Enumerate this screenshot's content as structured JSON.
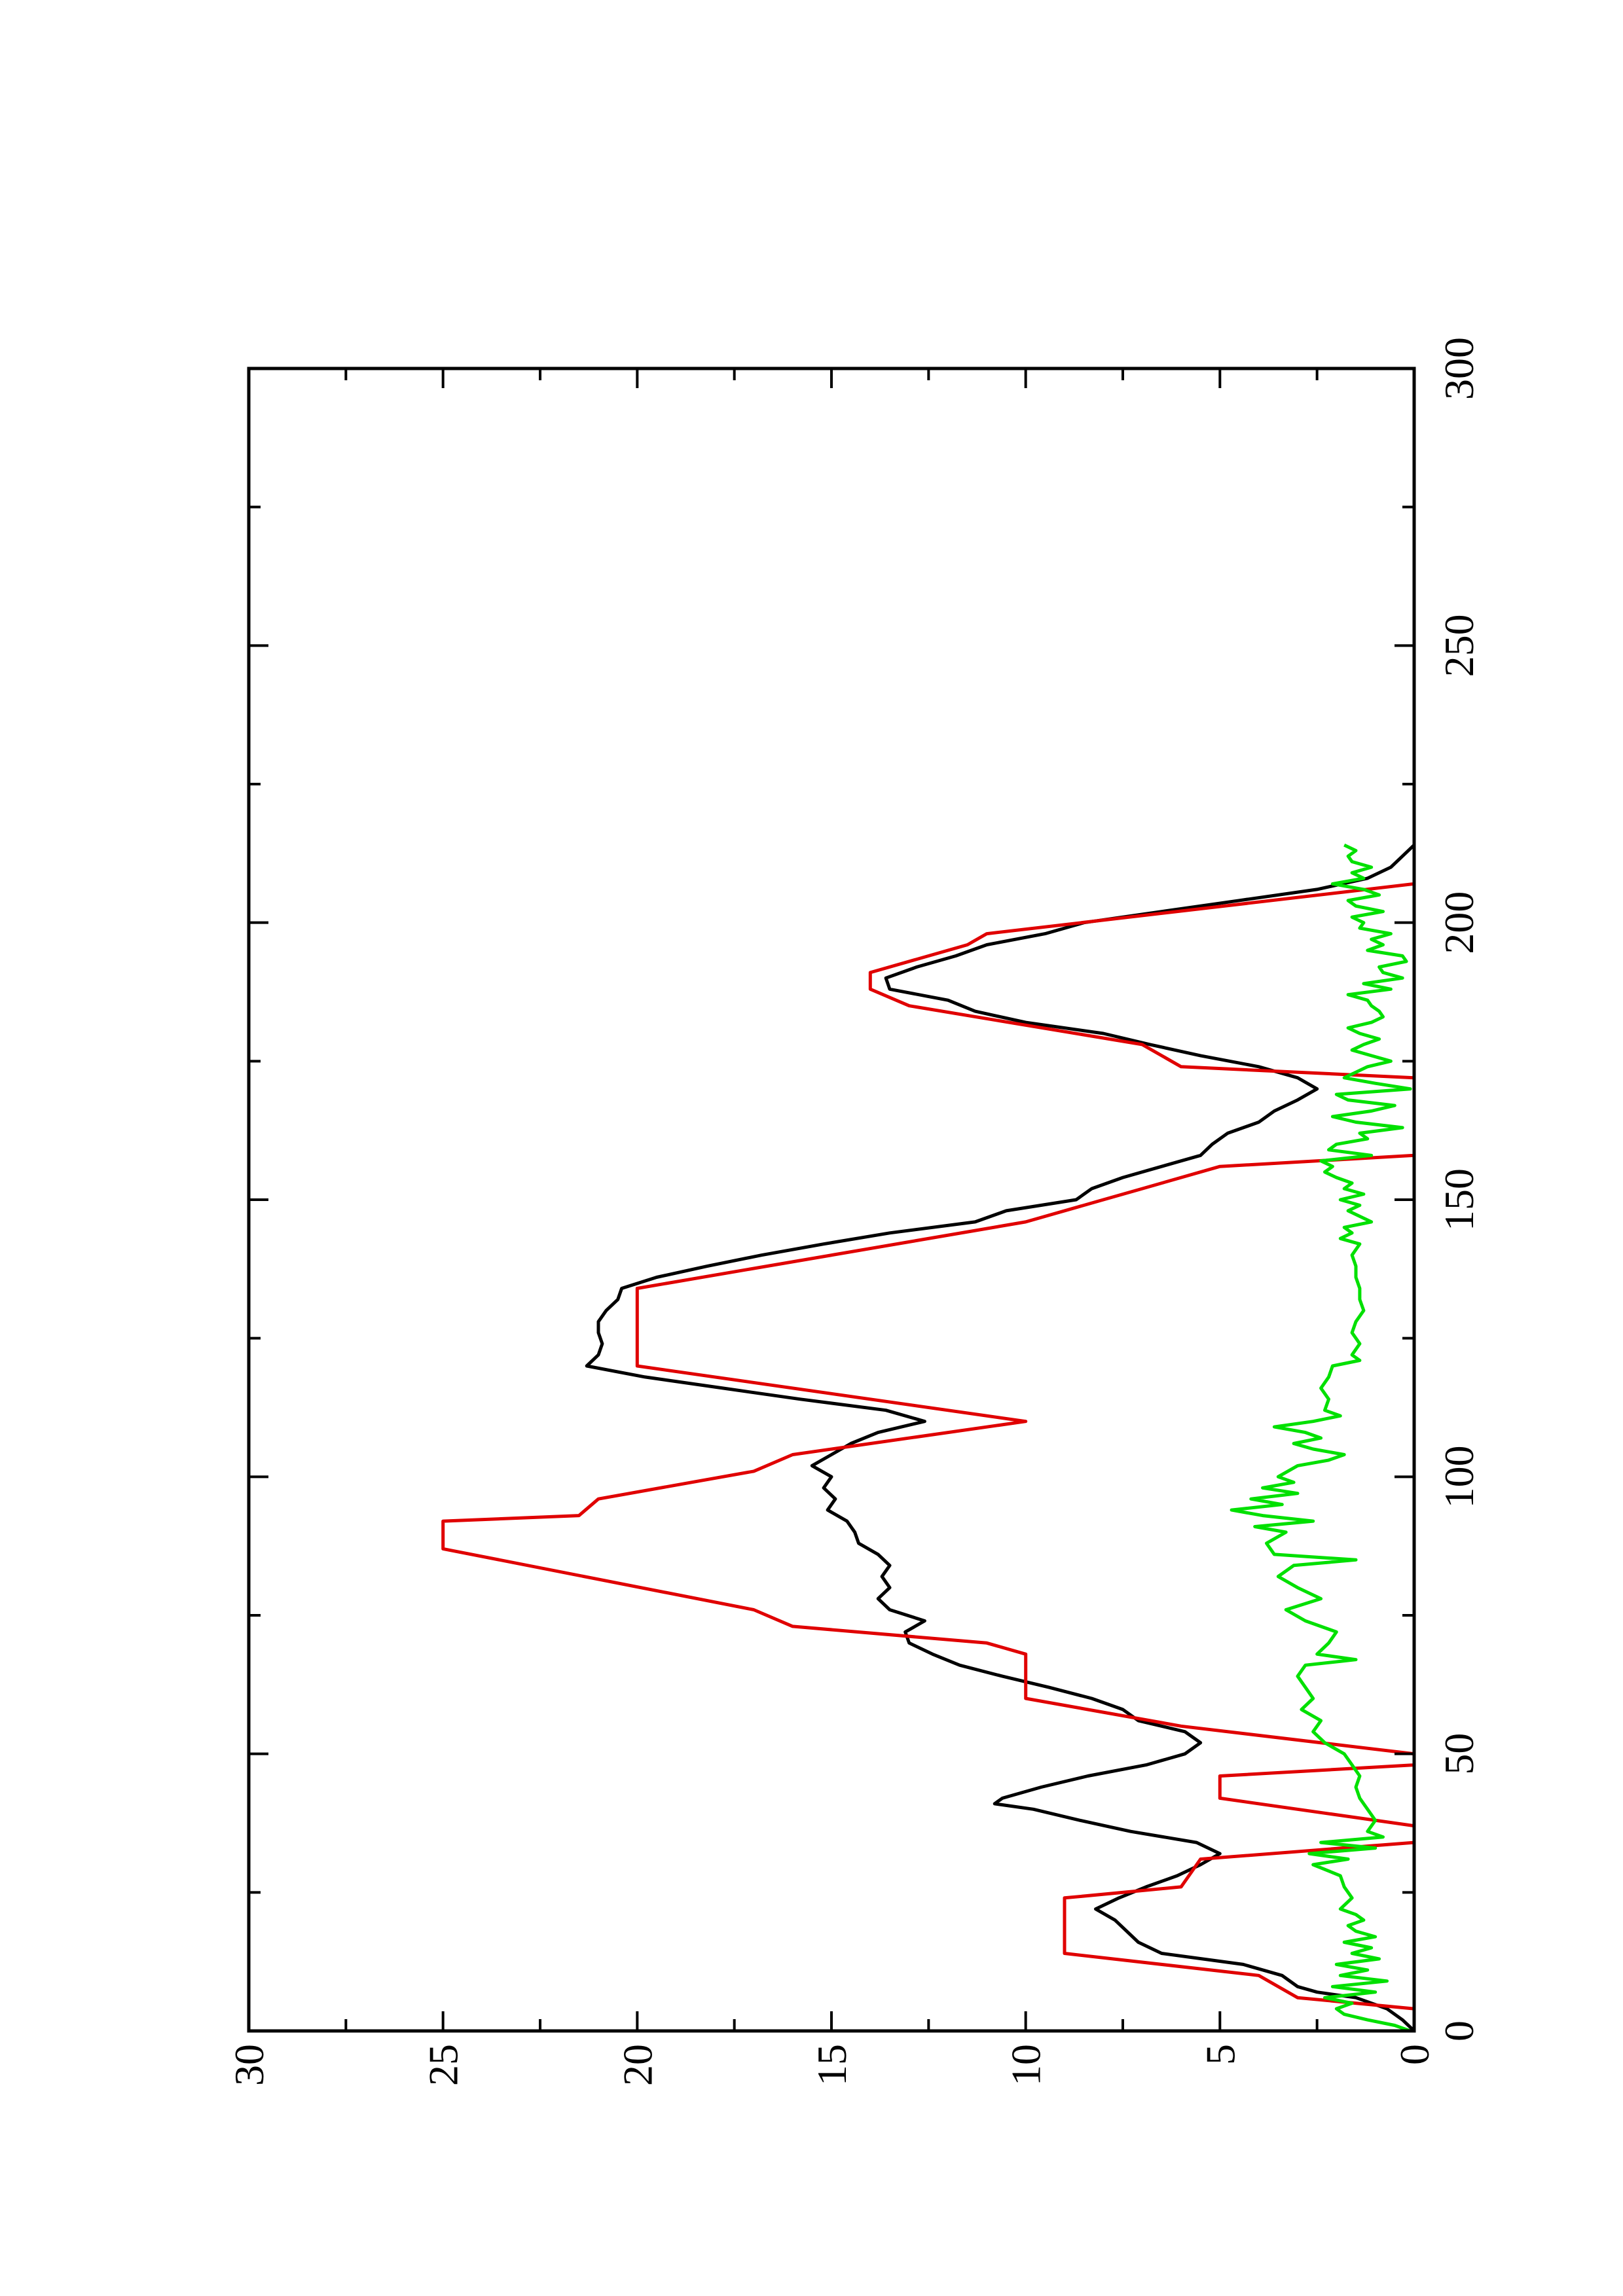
{
  "chart_data": {
    "type": "line",
    "title": "",
    "xlabel": "",
    "ylabel": "",
    "xlim": [
      0,
      300
    ],
    "ylim": [
      0,
      30
    ],
    "orientation": "rotated-90-ccw",
    "x_ticks": [
      0,
      50,
      100,
      150,
      200,
      250,
      300
    ],
    "x_tick_labels": [
      "0",
      "50",
      "100",
      "150",
      "200",
      "250",
      "300"
    ],
    "y_ticks": [
      0,
      5,
      10,
      15,
      20,
      25,
      30
    ],
    "y_tick_labels": [
      "0",
      "5",
      "10",
      "15",
      "20",
      "25",
      "30"
    ],
    "grid": false,
    "legend": "none",
    "series": [
      {
        "color": "#000000",
        "points": [
          [
            0,
            0
          ],
          [
            2,
            0.3
          ],
          [
            4,
            0.7
          ],
          [
            6,
            1.5
          ],
          [
            7,
            2.5
          ],
          [
            8,
            3.0
          ],
          [
            10,
            3.4
          ],
          [
            12,
            4.4
          ],
          [
            14,
            6.5
          ],
          [
            16,
            7.1
          ],
          [
            18,
            7.4
          ],
          [
            20,
            7.7
          ],
          [
            22,
            8.2
          ],
          [
            24,
            7.6
          ],
          [
            26,
            6.9
          ],
          [
            28,
            6.1
          ],
          [
            30,
            5.5
          ],
          [
            32,
            5.0
          ],
          [
            34,
            5.6
          ],
          [
            36,
            7.3
          ],
          [
            38,
            8.6
          ],
          [
            40,
            9.8
          ],
          [
            41,
            10.8
          ],
          [
            42,
            10.6
          ],
          [
            44,
            9.6
          ],
          [
            46,
            8.4
          ],
          [
            48,
            6.9
          ],
          [
            50,
            5.9
          ],
          [
            52,
            5.5
          ],
          [
            54,
            5.9
          ],
          [
            56,
            7.1
          ],
          [
            58,
            7.5
          ],
          [
            60,
            8.3
          ],
          [
            62,
            9.4
          ],
          [
            64,
            10.6
          ],
          [
            66,
            11.7
          ],
          [
            68,
            12.4
          ],
          [
            70,
            13.0
          ],
          [
            72,
            13.1
          ],
          [
            74,
            12.6
          ],
          [
            76,
            13.5
          ],
          [
            78,
            13.8
          ],
          [
            80,
            13.5
          ],
          [
            82,
            13.7
          ],
          [
            84,
            13.5
          ],
          [
            86,
            13.8
          ],
          [
            88,
            14.3
          ],
          [
            90,
            14.4
          ],
          [
            92,
            14.6
          ],
          [
            94,
            15.1
          ],
          [
            96,
            14.9
          ],
          [
            98,
            15.2
          ],
          [
            100,
            15.0
          ],
          [
            102,
            15.5
          ],
          [
            104,
            15.0
          ],
          [
            106,
            14.5
          ],
          [
            108,
            13.8
          ],
          [
            110,
            12.6
          ],
          [
            112,
            13.6
          ],
          [
            114,
            15.8
          ],
          [
            116,
            17.8
          ],
          [
            118,
            19.8
          ],
          [
            120,
            21.3
          ],
          [
            122,
            21.0
          ],
          [
            124,
            20.9
          ],
          [
            126,
            21.0
          ],
          [
            128,
            21.0
          ],
          [
            130,
            20.8
          ],
          [
            132,
            20.5
          ],
          [
            134,
            20.4
          ],
          [
            136,
            19.5
          ],
          [
            138,
            18.2
          ],
          [
            140,
            16.8
          ],
          [
            142,
            15.2
          ],
          [
            144,
            13.5
          ],
          [
            146,
            11.3
          ],
          [
            148,
            10.5
          ],
          [
            150,
            8.7
          ],
          [
            152,
            8.3
          ],
          [
            154,
            7.5
          ],
          [
            156,
            6.5
          ],
          [
            158,
            5.5
          ],
          [
            160,
            5.2
          ],
          [
            162,
            4.8
          ],
          [
            164,
            4.0
          ],
          [
            166,
            3.6
          ],
          [
            168,
            3.0
          ],
          [
            170,
            2.5
          ],
          [
            172,
            3.0
          ],
          [
            174,
            4.0
          ],
          [
            176,
            5.5
          ],
          [
            178,
            6.8
          ],
          [
            180,
            8.0
          ],
          [
            182,
            10.0
          ],
          [
            184,
            11.3
          ],
          [
            186,
            12.0
          ],
          [
            188,
            13.5
          ],
          [
            190,
            13.6
          ],
          [
            192,
            12.8
          ],
          [
            194,
            11.8
          ],
          [
            196,
            11.0
          ],
          [
            198,
            9.5
          ],
          [
            200,
            8.5
          ],
          [
            202,
            6.5
          ],
          [
            204,
            4.5
          ],
          [
            206,
            2.5
          ],
          [
            208,
            1.2
          ],
          [
            210,
            0.6
          ],
          [
            212,
            0.3
          ],
          [
            214,
            0
          ]
        ]
      },
      {
        "color": "#e00000",
        "points": [
          [
            0,
            0
          ],
          [
            4,
            0
          ],
          [
            6,
            3
          ],
          [
            10,
            4
          ],
          [
            14,
            9
          ],
          [
            24,
            9
          ],
          [
            26,
            6
          ],
          [
            31,
            5.5
          ],
          [
            34,
            0
          ],
          [
            37,
            0
          ],
          [
            42,
            5
          ],
          [
            46,
            5
          ],
          [
            48,
            0
          ],
          [
            50,
            0
          ],
          [
            55,
            6
          ],
          [
            60,
            10
          ],
          [
            68,
            10
          ],
          [
            70,
            11
          ],
          [
            73,
            16
          ],
          [
            76,
            17
          ],
          [
            87,
            25
          ],
          [
            92,
            25
          ],
          [
            93,
            21.5
          ],
          [
            96,
            21
          ],
          [
            101,
            17
          ],
          [
            104,
            16
          ],
          [
            110,
            10
          ],
          [
            120,
            20
          ],
          [
            134,
            20
          ],
          [
            146,
            10
          ],
          [
            150,
            8
          ],
          [
            152,
            7
          ],
          [
            156,
            5
          ],
          [
            158,
            0
          ],
          [
            172,
            0
          ],
          [
            174,
            6
          ],
          [
            178,
            7
          ],
          [
            185,
            13
          ],
          [
            188,
            14
          ],
          [
            191,
            14
          ],
          [
            196,
            11.5
          ],
          [
            198,
            11
          ],
          [
            207,
            0
          ],
          [
            214,
            0
          ]
        ]
      },
      {
        "color": "#00e000",
        "points": [
          [
            0,
            0.1
          ],
          [
            1,
            0.5
          ],
          [
            2,
            1.2
          ],
          [
            3,
            1.8
          ],
          [
            4,
            2.0
          ],
          [
            5,
            1.6
          ],
          [
            6,
            2.3
          ],
          [
            7,
            1.0
          ],
          [
            8,
            2.1
          ],
          [
            9,
            0.7
          ],
          [
            10,
            1.9
          ],
          [
            11,
            1.2
          ],
          [
            12,
            2.0
          ],
          [
            13,
            0.9
          ],
          [
            14,
            1.6
          ],
          [
            15,
            1.1
          ],
          [
            16,
            1.8
          ],
          [
            17,
            1.0
          ],
          [
            18,
            1.5
          ],
          [
            19,
            1.7
          ],
          [
            20,
            1.3
          ],
          [
            21,
            1.5
          ],
          [
            22,
            1.9
          ],
          [
            24,
            1.6
          ],
          [
            26,
            1.8
          ],
          [
            28,
            1.9
          ],
          [
            30,
            2.6
          ],
          [
            31,
            1.7
          ],
          [
            32,
            2.7
          ],
          [
            33,
            1.0
          ],
          [
            34,
            2.4
          ],
          [
            35,
            0.8
          ],
          [
            36,
            1.2
          ],
          [
            38,
            1.0
          ],
          [
            40,
            1.2
          ],
          [
            42,
            1.4
          ],
          [
            44,
            1.5
          ],
          [
            46,
            1.4
          ],
          [
            48,
            1.6
          ],
          [
            50,
            1.8
          ],
          [
            52,
            2.3
          ],
          [
            54,
            2.6
          ],
          [
            56,
            2.4
          ],
          [
            58,
            2.9
          ],
          [
            60,
            2.6
          ],
          [
            62,
            2.8
          ],
          [
            64,
            3.0
          ],
          [
            66,
            2.8
          ],
          [
            67,
            1.5
          ],
          [
            68,
            2.5
          ],
          [
            70,
            2.2
          ],
          [
            72,
            2.0
          ],
          [
            74,
            2.8
          ],
          [
            76,
            3.3
          ],
          [
            78,
            2.4
          ],
          [
            80,
            3.0
          ],
          [
            82,
            3.5
          ],
          [
            84,
            3.1
          ],
          [
            85,
            1.5
          ],
          [
            86,
            3.6
          ],
          [
            88,
            3.8
          ],
          [
            90,
            3.3
          ],
          [
            91,
            4.1
          ],
          [
            92,
            2.6
          ],
          [
            93,
            3.9
          ],
          [
            94,
            4.7
          ],
          [
            95,
            3.4
          ],
          [
            96,
            4.2
          ],
          [
            97,
            3.0
          ],
          [
            98,
            3.9
          ],
          [
            99,
            3.1
          ],
          [
            100,
            3.5
          ],
          [
            102,
            3.0
          ],
          [
            103,
            2.2
          ],
          [
            104,
            1.8
          ],
          [
            105,
            2.6
          ],
          [
            106,
            3.1
          ],
          [
            107,
            2.4
          ],
          [
            108,
            2.8
          ],
          [
            109,
            3.6
          ],
          [
            110,
            2.6
          ],
          [
            111,
            1.9
          ],
          [
            112,
            2.3
          ],
          [
            114,
            2.2
          ],
          [
            116,
            2.4
          ],
          [
            118,
            2.2
          ],
          [
            120,
            2.1
          ],
          [
            121,
            1.4
          ],
          [
            122,
            1.6
          ],
          [
            124,
            1.4
          ],
          [
            126,
            1.6
          ],
          [
            128,
            1.5
          ],
          [
            130,
            1.3
          ],
          [
            132,
            1.4
          ],
          [
            134,
            1.4
          ],
          [
            136,
            1.5
          ],
          [
            138,
            1.5
          ],
          [
            140,
            1.6
          ],
          [
            142,
            1.4
          ],
          [
            143,
            1.9
          ],
          [
            144,
            1.6
          ],
          [
            145,
            1.8
          ],
          [
            146,
            1.1
          ],
          [
            147,
            1.4
          ],
          [
            148,
            1.7
          ],
          [
            149,
            1.4
          ],
          [
            150,
            1.9
          ],
          [
            151,
            1.3
          ],
          [
            152,
            1.8
          ],
          [
            153,
            1.6
          ],
          [
            154,
            2.0
          ],
          [
            155,
            2.3
          ],
          [
            156,
            2.1
          ],
          [
            157,
            2.4
          ],
          [
            158,
            1.1
          ],
          [
            159,
            2.2
          ],
          [
            160,
            2.0
          ],
          [
            161,
            1.2
          ],
          [
            162,
            1.4
          ],
          [
            163,
            0.3
          ],
          [
            164,
            1.5
          ],
          [
            165,
            2.1
          ],
          [
            166,
            1.1
          ],
          [
            167,
            0.5
          ],
          [
            168,
            1.7
          ],
          [
            169,
            2.0
          ],
          [
            170,
            0.1
          ],
          [
            171,
            1.0
          ],
          [
            172,
            1.8
          ],
          [
            174,
            1.2
          ],
          [
            175,
            0.6
          ],
          [
            176,
            1.1
          ],
          [
            177,
            1.6
          ],
          [
            178,
            1.3
          ],
          [
            179,
            0.9
          ],
          [
            180,
            1.4
          ],
          [
            181,
            1.7
          ],
          [
            182,
            1.1
          ],
          [
            183,
            0.8
          ],
          [
            184,
            0.9
          ],
          [
            185,
            1.1
          ],
          [
            186,
            1.2
          ],
          [
            187,
            1.7
          ],
          [
            188,
            0.6
          ],
          [
            189,
            1.3
          ],
          [
            190,
            0.3
          ],
          [
            191,
            0.8
          ],
          [
            192,
            0.9
          ],
          [
            193,
            0.2
          ],
          [
            194,
            0.3
          ],
          [
            195,
            1.2
          ],
          [
            196,
            0.8
          ],
          [
            197,
            1.1
          ],
          [
            198,
            0.6
          ],
          [
            199,
            1.4
          ],
          [
            200,
            1.3
          ],
          [
            201,
            1.6
          ],
          [
            202,
            0.8
          ],
          [
            203,
            1.5
          ],
          [
            204,
            1.7
          ],
          [
            205,
            0.9
          ],
          [
            206,
            1.3
          ],
          [
            207,
            2.1
          ],
          [
            208,
            1.3
          ],
          [
            209,
            1.6
          ],
          [
            210,
            1.1
          ],
          [
            211,
            1.6
          ],
          [
            212,
            1.7
          ],
          [
            213,
            1.5
          ],
          [
            214,
            1.8
          ]
        ]
      }
    ]
  }
}
